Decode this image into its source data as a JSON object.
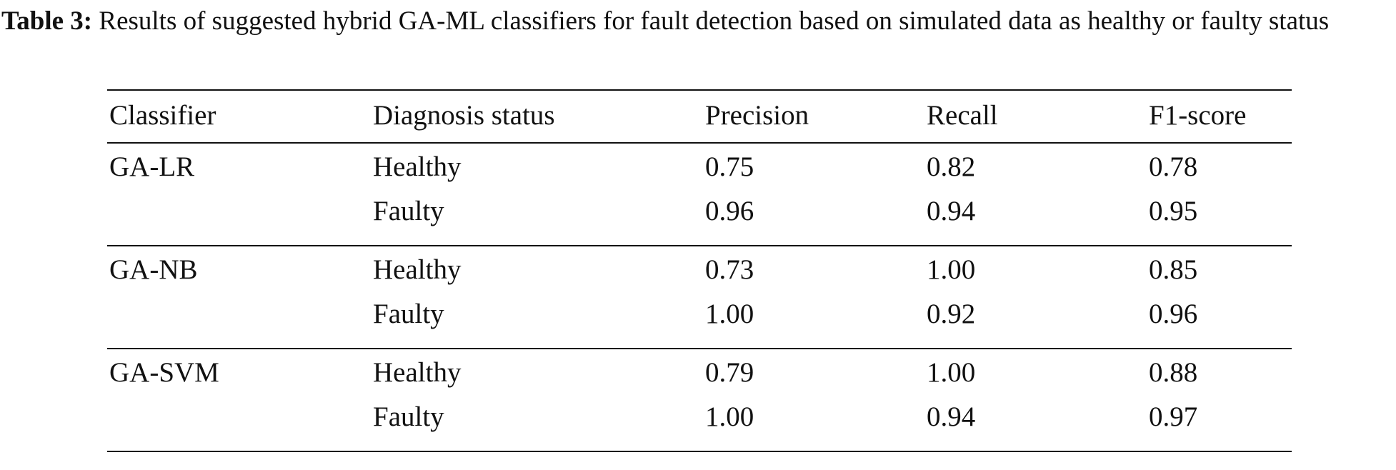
{
  "caption": {
    "label": "Table 3:",
    "text": " Results of suggested hybrid GA-ML classifiers for fault detection based on simulated data as healthy or faulty status"
  },
  "table": {
    "headers": [
      "Classifier",
      "Diagnosis status",
      "Precision",
      "Recall",
      "F1-score"
    ],
    "groups": [
      {
        "classifier": "GA-LR",
        "rows": [
          {
            "status": "Healthy",
            "precision": "0.75",
            "recall": "0.82",
            "f1": "0.78"
          },
          {
            "status": "Faulty",
            "precision": "0.96",
            "recall": "0.94",
            "f1": "0.95"
          }
        ]
      },
      {
        "classifier": "GA-NB",
        "rows": [
          {
            "status": "Healthy",
            "precision": "0.73",
            "recall": "1.00",
            "f1": "0.85"
          },
          {
            "status": "Faulty",
            "precision": "1.00",
            "recall": "0.92",
            "f1": "0.96"
          }
        ]
      },
      {
        "classifier": "GA-SVM",
        "rows": [
          {
            "status": "Healthy",
            "precision": "0.79",
            "recall": "1.00",
            "f1": "0.88"
          },
          {
            "status": "Faulty",
            "precision": "1.00",
            "recall": "0.94",
            "f1": "0.97"
          }
        ]
      }
    ]
  }
}
